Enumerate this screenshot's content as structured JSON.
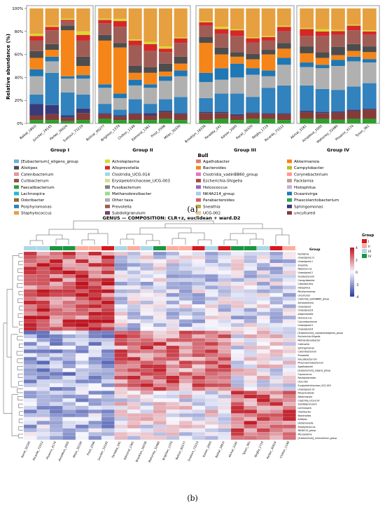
{
  "panel_a_label": "(a)",
  "panel_b_label": "(b)",
  "chart_data": [
    {
      "type": "bar",
      "stacked": true,
      "ylabel": "Relative abundance (%)",
      "xlabel": "Bull",
      "ylim": [
        0,
        100
      ],
      "yticks": [
        "0%",
        "20%",
        "40%",
        "60%",
        "80%",
        "100%"
      ],
      "groups": [
        {
          "name": "Group I",
          "samples": [
            "Baikal_1801I",
            "Juncker_19145",
            "Parker_30024",
            "Svetoch_73219"
          ]
        },
        {
          "name": "Group II",
          "samples": [
            "Bolivar_60277",
            "Brighton_1379",
            "Chilton_1148",
            "Edmond_1361",
            "Frost_2596",
            "Milan_30330"
          ]
        },
        {
          "name": "Group III",
          "samples": [
            "Brooklyn_18336",
            "Faraday_241",
            "Kaiser_2005",
            "Karat_30320",
            "Regby_1719",
            "Ricardo_73312"
          ]
        },
        {
          "name": "Group IV",
          "samples": [
            "Akmal_3181",
            "Amadeus_2005",
            "Mahoney_32480",
            "Phoenix_4174",
            "Tyson_361"
          ]
        }
      ],
      "legend": [
        {
          "name": "[Eubacterium]_eligens_group",
          "color": "#6baed6"
        },
        {
          "name": "Acholeplasma",
          "color": "#d9d930"
        },
        {
          "name": "Agathobacter",
          "color": "#e07b6a"
        },
        {
          "name": "Akkermansia",
          "color": "#ff7f0e"
        },
        {
          "name": "Alistipes",
          "color": "#4d4d4d"
        },
        {
          "name": "Alloprevotella",
          "color": "#d62728"
        },
        {
          "name": "Bacteroides",
          "color": "#f58518"
        },
        {
          "name": "Campylobacter",
          "color": "#bcbd22"
        },
        {
          "name": "Catenibacterium",
          "color": "#e7969c"
        },
        {
          "name": "Clostridia_UCG-014",
          "color": "#9edae5"
        },
        {
          "name": "Clostridia_vadinBB60_group",
          "color": "#e377c2"
        },
        {
          "name": "Corynebacterium",
          "color": "#ff9896"
        },
        {
          "name": "Cutibacterium",
          "color": "#8c564b"
        },
        {
          "name": "Erysipelotrichaceae_UCG-003",
          "color": "#dbdb8d"
        },
        {
          "name": "Escherichia-Shigella",
          "color": "#ad494a"
        },
        {
          "name": "Facklamia",
          "color": "#c49c94"
        },
        {
          "name": "Faecalibacterium",
          "color": "#2ca02c"
        },
        {
          "name": "Fusobacterium",
          "color": "#7f7f7f"
        },
        {
          "name": "Helcococcus",
          "color": "#9467bd"
        },
        {
          "name": "Histophilus",
          "color": "#c5b0d5"
        },
        {
          "name": "Lachnospira",
          "color": "#17becf"
        },
        {
          "name": "Methanobrevibacter",
          "color": "#98df8a"
        },
        {
          "name": "NK4A214_group",
          "color": "#aec7e8"
        },
        {
          "name": "Oceanivirga",
          "color": "#1f77b4"
        },
        {
          "name": "Odoribacter",
          "color": "#8c6d31"
        },
        {
          "name": "Other taxa",
          "color": "#b0b0b0"
        },
        {
          "name": "Parabacteroides",
          "color": "#d6616b"
        },
        {
          "name": "Phascolarctobacterium",
          "color": "#31a354"
        },
        {
          "name": "Porphyromonas",
          "color": "#3182bd"
        },
        {
          "name": "Prevotella",
          "color": "#a05d56"
        },
        {
          "name": "Sneathia",
          "color": "#b5a642"
        },
        {
          "name": "Sphingomonas",
          "color": "#393b79"
        },
        {
          "name": "Staphylococcus",
          "color": "#e6a040"
        },
        {
          "name": "Subdoligranulum",
          "color": "#7b4173"
        },
        {
          "name": "UCG-002",
          "color": "#e7cb94"
        },
        {
          "name": "uncultured",
          "color": "#843c39"
        }
      ],
      "series": [
        {
          "name": "Faecalibacterium",
          "values": [
            3,
            3,
            2,
            3,
            4,
            3,
            3,
            3,
            4,
            3,
            3,
            4,
            3,
            4,
            4,
            3,
            4,
            4,
            3,
            4,
            4
          ]
        },
        {
          "name": "uncultured",
          "values": [
            4,
            5,
            3,
            6,
            4,
            3,
            5,
            4,
            6,
            5,
            6,
            5,
            4,
            5,
            4,
            5,
            6,
            5,
            6,
            7,
            8
          ]
        },
        {
          "name": "Sphingomonas",
          "values": [
            10,
            8,
            2,
            4,
            1,
            1,
            1,
            2,
            1,
            1,
            1,
            1,
            1,
            1,
            1,
            1,
            1,
            1,
            1,
            1,
            1
          ]
        },
        {
          "name": "Porphyromonas",
          "values": [
            8,
            28,
            20,
            12,
            8,
            5,
            12,
            8,
            10,
            14,
            12,
            16,
            18,
            14,
            22,
            24,
            22,
            20,
            18,
            20,
            22
          ]
        },
        {
          "name": "Other taxa",
          "values": [
            16,
            10,
            12,
            14,
            14,
            10,
            12,
            14,
            16,
            18,
            14,
            12,
            14,
            20,
            10,
            18,
            16,
            18,
            20,
            22,
            18
          ]
        },
        {
          "name": "Oceanivirga",
          "values": [
            6,
            4,
            2,
            3,
            3,
            4,
            5,
            3,
            4,
            5,
            8,
            10,
            12,
            6,
            5,
            6,
            4,
            3,
            5,
            4,
            3
          ]
        },
        {
          "name": "Bacteroides",
          "values": [
            10,
            6,
            40,
            8,
            38,
            40,
            6,
            10,
            4,
            6,
            26,
            12,
            6,
            8,
            14,
            8,
            8,
            6,
            4,
            5,
            6
          ]
        },
        {
          "name": "Alistipes",
          "values": [
            6,
            5,
            4,
            8,
            5,
            4,
            6,
            5,
            7,
            6,
            5,
            6,
            4,
            5,
            4,
            5,
            6,
            5,
            7,
            6,
            5
          ]
        },
        {
          "name": "Prevotella",
          "values": [
            9,
            12,
            4,
            14,
            10,
            14,
            18,
            14,
            10,
            12,
            10,
            12,
            14,
            10,
            8,
            10,
            9,
            14,
            10,
            12,
            10
          ]
        },
        {
          "name": "Alloprevotella",
          "values": [
            4,
            3,
            1,
            5,
            3,
            5,
            4,
            6,
            3,
            4,
            3,
            4,
            5,
            4,
            3,
            4,
            6,
            4,
            3,
            4,
            3
          ]
        },
        {
          "name": "Acholeplasma",
          "values": [
            2,
            1,
            1,
            3,
            1,
            2,
            1,
            2,
            2,
            1,
            1,
            2,
            1,
            1,
            1,
            1,
            1,
            2,
            1,
            1,
            1
          ]
        },
        {
          "name": "Staphylococcus",
          "values": [
            22,
            15,
            9,
            20,
            9,
            9,
            27,
            29,
            33,
            25,
            11,
            16,
            18,
            26,
            24,
            15,
            17,
            18,
            18,
            14,
            19
          ]
        }
      ]
    },
    {
      "type": "heatmap",
      "title": "GENUS — COMPOSITION: CLR+z, euclidean + ward.D2",
      "legend_title": "Group",
      "group_labels": [
        "I",
        "II",
        "III",
        "IV"
      ],
      "group_colors": [
        "#d7191c",
        "#fdae9e",
        "#abd9e9",
        "#1a9641"
      ],
      "colorbar_ticks": [
        "4",
        "2",
        "0",
        "-2",
        "-4"
      ],
      "color_range": [
        -4,
        4
      ],
      "columns": [
        "Karat_30320",
        "Ricardo_73312",
        "Phoenix_4174",
        "Amadeus_2005",
        "Milan_30330",
        "Frost_2596",
        "Juncker_19145",
        "Faraday_241",
        "Edmond_1361",
        "Brooklyn_18336",
        "Mahoney_32480",
        "Brighton_1379",
        "Bolivar_60277",
        "Svetoch_73219",
        "Kaiser_2005",
        "Baikal_1801I",
        "Akmal_3181",
        "Tyson_361",
        "Regby_1719",
        "Parker_30024",
        "Chilton_1148"
      ],
      "column_groups": [
        "III",
        "III",
        "IV",
        "IV",
        "II",
        "II",
        "I",
        "III",
        "II",
        "III",
        "IV",
        "II",
        "II",
        "I",
        "III",
        "I",
        "IV",
        "IV",
        "III",
        "I",
        "II"
      ],
      "rows": [
        "Facklamia",
        "Unassigned.21",
        "Unassigned.1",
        "Sneathia",
        "Peptococcus",
        "Unassigned.2",
        "Fusobacterium",
        "Campylobacter",
        "Cloacibacillus",
        "Histophilus",
        "Porphyromonas",
        "uncultured",
        "Clostridia_vadinBB60_group",
        "Acholeplasma",
        "Unassigned",
        "Unassigned.8",
        "Alloprevotella",
        "Helcococcus",
        "Corynebacterium",
        "Unassigned.5",
        "Unassigned.6",
        "[Eubacterium]_coprostanoligenes_group",
        "Escherichia-Shigella",
        "Methanobrevibacter",
        "Collinsella",
        "Sphingomonas",
        "Catenibacterium",
        "Prevotella",
        "Faecalibacterium",
        "Phascolarctobacterium",
        "Agathobacter",
        "[Eubacterium]_eligens_group",
        "Coprococcus",
        "Parabacteroides",
        "UCG-002",
        "Erysipelotrichaceae_UCG-003",
        "Unassigned.19",
        "Paraprevotella",
        "Akkermansia",
        "Clostridia_UCG-014",
        "Subdoligranulum",
        "Lachnospira",
        "Odoribacter",
        "Bacteroides",
        "Alistipes",
        "Holdemanella",
        "Staphylococcus",
        "NK4A214_group",
        "Mycoplasma",
        "[Eubacterium]_ruminantium_group"
      ]
    }
  ]
}
